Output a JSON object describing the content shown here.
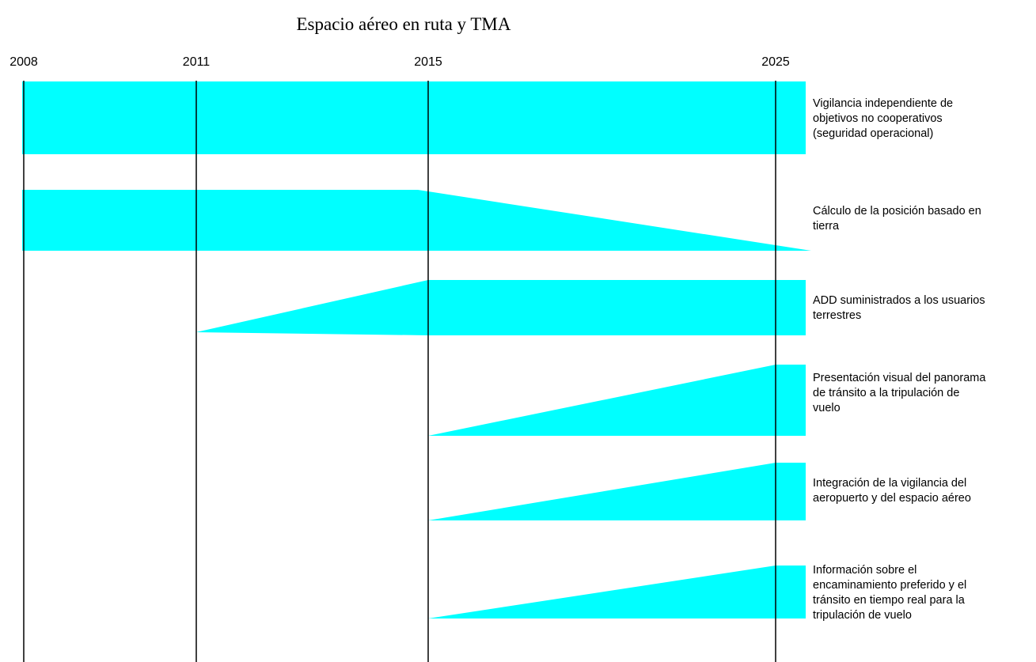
{
  "title": "Espacio aéreo en ruta y TMA",
  "colors": {
    "band": "#00ffff",
    "line": "#000000"
  },
  "years": [
    "2008",
    "2011",
    "2015",
    "2025"
  ],
  "rows": [
    {
      "label": "Vigilancia independiente de\nobjetivos no cooperativos\n(seguridad operacional)",
      "shape": "full"
    },
    {
      "label": "Cálculo de la posición basado en\ntierra",
      "shape": "full-then-taper-down"
    },
    {
      "label": "ADD suministrados a los usuarios\nterrestres",
      "shape": "ramp-up-then-full"
    },
    {
      "label": "Presentación visual del panorama\nde tránsito a la tripulación de\nvuelo",
      "shape": "ramp-up-then-full"
    },
    {
      "label": "Integración de la vigilancia del\naeropuerto y del espacio aéreo",
      "shape": "ramp-up-then-full"
    },
    {
      "label": "Información sobre el\nencaminamiento preferido y el\ntránsito en tiempo real para la\ntripulación de vuelo",
      "shape": "ramp-up-then-full"
    }
  ]
}
